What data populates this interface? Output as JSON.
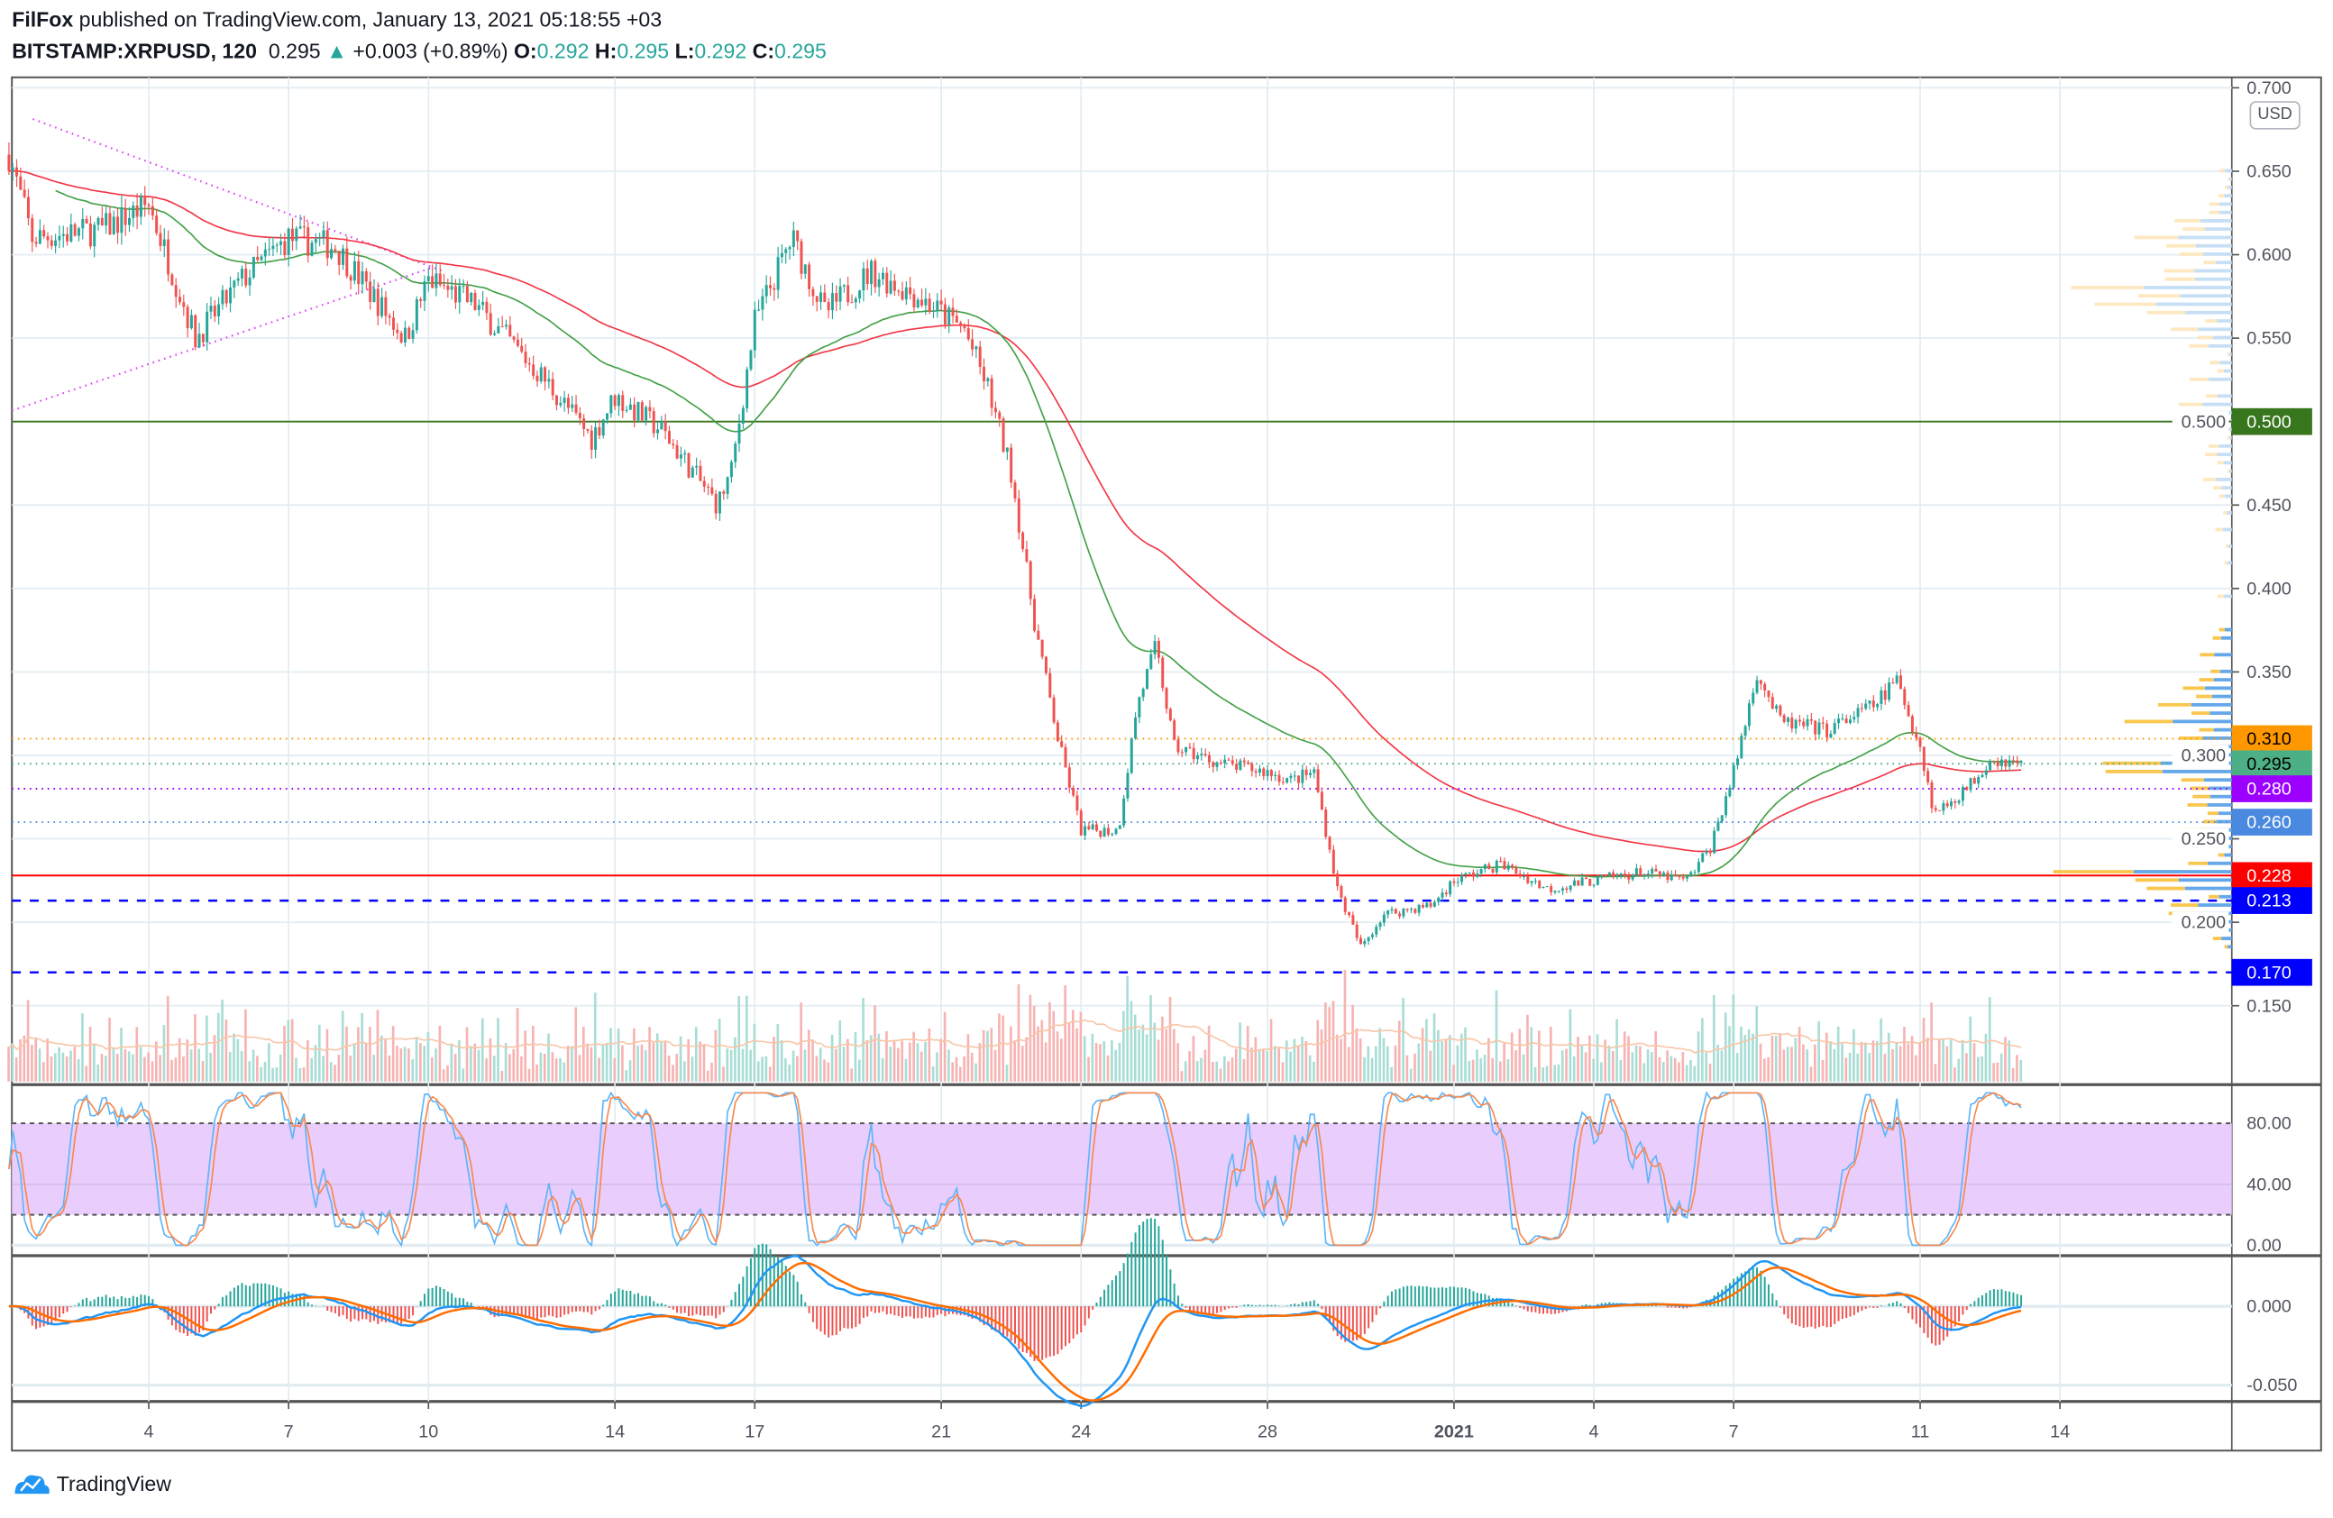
{
  "header": {
    "publisher": "FilFox",
    "published_text": "published on TradingView.com, January 13, 2021 05:18:55 +03",
    "symbol": "BITSTAMP:XRPUSD, 120",
    "last": "0.295",
    "change": "+0.003 (+0.89%)",
    "o_label": "O:",
    "o": "0.292",
    "h_label": "H:",
    "h": "0.295",
    "l_label": "L:",
    "l": "0.292",
    "c_label": "C:",
    "c": "0.295"
  },
  "currency_button": "USD",
  "logo_text": "TradingView",
  "colors": {
    "up": "#26a69a",
    "down": "#ef5350",
    "ma_long": "#f23645",
    "ma_short": "#43a047"
  },
  "chart_data": {
    "type": "candlestick",
    "interval_minutes": 120,
    "price_axis": {
      "ticks": [
        "0.700",
        "0.650",
        "0.600",
        "0.550",
        "0.500",
        "0.450",
        "0.400",
        "0.350",
        "0.300",
        "0.250",
        "0.200",
        "0.150"
      ],
      "range": [
        0.1,
        0.7
      ]
    },
    "time_axis": {
      "ticks": [
        {
          "label": "4",
          "day": 4
        },
        {
          "label": "7",
          "day": 7
        },
        {
          "label": "10",
          "day": 10
        },
        {
          "label": "14",
          "day": 14
        },
        {
          "label": "17",
          "day": 17
        },
        {
          "label": "21",
          "day": 21
        },
        {
          "label": "24",
          "day": 24
        },
        {
          "label": "28",
          "day": 28
        },
        {
          "label": "2021",
          "day": 32
        },
        {
          "label": "4",
          "day": 35
        },
        {
          "label": "7",
          "day": 38
        },
        {
          "label": "11",
          "day": 42
        },
        {
          "label": "14",
          "day": 45
        }
      ]
    },
    "price_path_days_from_dec1": [
      [
        1,
        0.66
      ],
      [
        1.5,
        0.61
      ],
      [
        3,
        0.615
      ],
      [
        4,
        0.63
      ],
      [
        5,
        0.55
      ],
      [
        6,
        0.585
      ],
      [
        7,
        0.61
      ],
      [
        8,
        0.605
      ],
      [
        9.5,
        0.55
      ],
      [
        10,
        0.585
      ],
      [
        11,
        0.57
      ],
      [
        12.5,
        0.525
      ],
      [
        13.5,
        0.49
      ],
      [
        14,
        0.515
      ],
      [
        15,
        0.495
      ],
      [
        16.2,
        0.45
      ],
      [
        16.5,
        0.47
      ],
      [
        17,
        0.56
      ],
      [
        17.8,
        0.61
      ],
      [
        18.5,
        0.565
      ],
      [
        19.5,
        0.59
      ],
      [
        20.5,
        0.575
      ],
      [
        21.5,
        0.555
      ],
      [
        22,
        0.52
      ],
      [
        22.5,
        0.47
      ],
      [
        23,
        0.38
      ],
      [
        23.5,
        0.31
      ],
      [
        24,
        0.255
      ],
      [
        24.8,
        0.255
      ],
      [
        25.2,
        0.33
      ],
      [
        25.6,
        0.365
      ],
      [
        26,
        0.305
      ],
      [
        27,
        0.295
      ],
      [
        28,
        0.29
      ],
      [
        28.5,
        0.285
      ],
      [
        29,
        0.29
      ],
      [
        29.5,
        0.22
      ],
      [
        30,
        0.185
      ],
      [
        30.5,
        0.205
      ],
      [
        31.5,
        0.21
      ],
      [
        32,
        0.225
      ],
      [
        33,
        0.235
      ],
      [
        34,
        0.22
      ],
      [
        35,
        0.225
      ],
      [
        36,
        0.23
      ],
      [
        37,
        0.225
      ],
      [
        37.5,
        0.245
      ],
      [
        38,
        0.29
      ],
      [
        38.5,
        0.35
      ],
      [
        39,
        0.32
      ],
      [
        40,
        0.315
      ],
      [
        41,
        0.33
      ],
      [
        41.5,
        0.345
      ],
      [
        42,
        0.305
      ],
      [
        42.3,
        0.265
      ],
      [
        43,
        0.28
      ],
      [
        43.5,
        0.298
      ],
      [
        44.2,
        0.295
      ]
    ],
    "levels": [
      {
        "label": "0.500",
        "price": 0.5,
        "color": "#38761d",
        "style": "solid",
        "text": "#ffffff"
      },
      {
        "label": "0.310",
        "price": 0.31,
        "color": "#ff9800",
        "style": "dotted",
        "text": "#000000"
      },
      {
        "label": "0.295",
        "price": 0.295,
        "color": "#4caf85",
        "style": "dotted",
        "text": "#000000"
      },
      {
        "label": "0.280",
        "price": 0.28,
        "color": "#9c00ff",
        "style": "dotted",
        "text": "#ffffff"
      },
      {
        "label": "0.260",
        "price": 0.26,
        "color": "#4a89e0",
        "style": "dotted",
        "text": "#ffffff"
      },
      {
        "label": "0.228",
        "price": 0.228,
        "color": "#ff0000",
        "style": "solid",
        "text": "#ffffff"
      },
      {
        "label": "0.213",
        "price": 0.213,
        "color": "#0000ff",
        "style": "dashed",
        "text": "#ffffff"
      },
      {
        "label": "0.170",
        "price": 0.17,
        "color": "#0000ff",
        "style": "dashed",
        "text": "#ffffff"
      }
    ],
    "stoch_rsi": {
      "ticks": [
        "80.00",
        "40.00",
        "0.00"
      ],
      "upper": 80,
      "lower": 20,
      "range": [
        0,
        100
      ]
    },
    "macd": {
      "ticks": [
        "0.000",
        "-0.050"
      ],
      "range": [
        -0.06,
        0.03
      ]
    }
  }
}
